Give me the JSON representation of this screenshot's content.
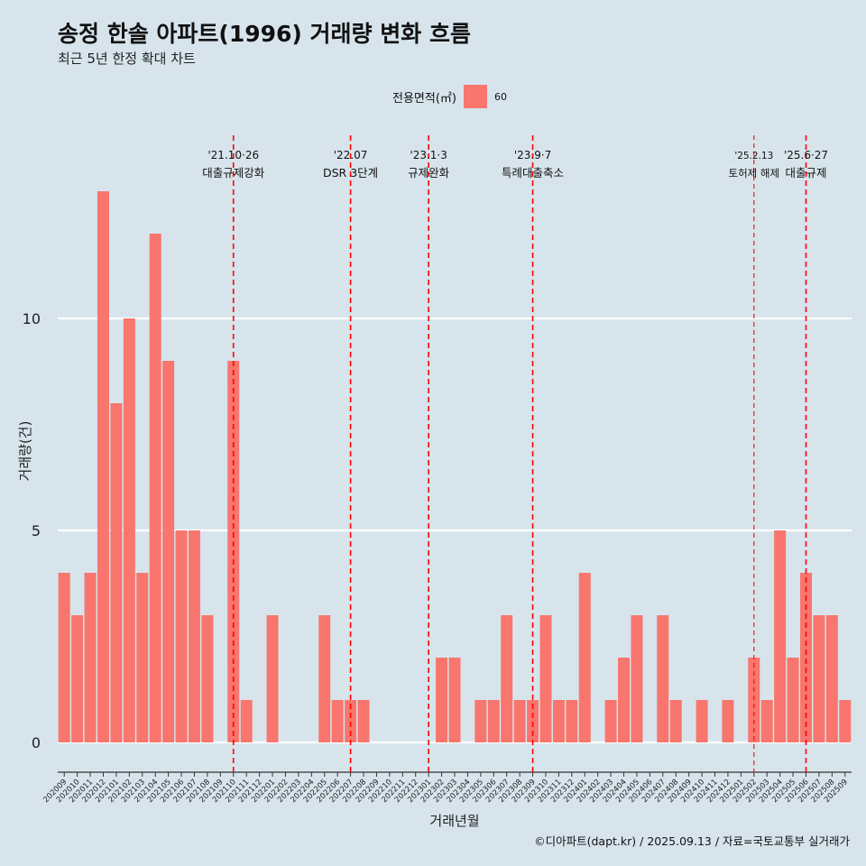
{
  "title": "송정 한솔 아파트(1996) 거래량 변화 흐름",
  "subtitle": "최근 5년 한정 확대 차트",
  "legend": {
    "title": "전용면적(㎡)",
    "item": "60"
  },
  "caption": "©디아파트(dapt.kr) / 2025.09.13 / 자료=국토교통부 실거래가",
  "colors": {
    "bar": "#f8766d",
    "background": "#d7e4ec",
    "grid": "#ffffff",
    "event_line": "#ff0000"
  },
  "chart_data": {
    "type": "bar",
    "xlabel": "거래년월",
    "ylabel": "거래량(건)",
    "ylim": [
      0,
      13.8
    ],
    "yticks": [
      0,
      5,
      10
    ],
    "grid": "horizontal major lines",
    "legend_position": "top",
    "categories": [
      "202009",
      "202010",
      "202011",
      "202012",
      "202101",
      "202102",
      "202103",
      "202104",
      "202105",
      "202106",
      "202107",
      "202108",
      "202109",
      "202110",
      "202111",
      "202112",
      "202201",
      "202202",
      "202203",
      "202204",
      "202205",
      "202206",
      "202207",
      "202208",
      "202209",
      "202210",
      "202211",
      "202212",
      "202301",
      "202302",
      "202303",
      "202304",
      "202305",
      "202306",
      "202307",
      "202308",
      "202309",
      "202310",
      "202311",
      "202312",
      "202401",
      "202402",
      "202403",
      "202404",
      "202405",
      "202406",
      "202407",
      "202408",
      "202409",
      "202410",
      "202411",
      "202412",
      "202501",
      "202502",
      "202503",
      "202504",
      "202505",
      "202506",
      "202507",
      "202508",
      "202509"
    ],
    "series": [
      {
        "name": "60",
        "values": [
          4,
          3,
          4,
          13,
          8,
          10,
          4,
          12,
          9,
          5,
          5,
          3,
          0,
          9,
          1,
          0,
          3,
          0,
          0,
          0,
          3,
          1,
          1,
          1,
          0,
          0,
          0,
          0,
          0,
          2,
          2,
          0,
          1,
          1,
          3,
          1,
          1,
          3,
          1,
          1,
          4,
          0,
          1,
          2,
          3,
          0,
          3,
          1,
          0,
          1,
          0,
          1,
          0,
          2,
          1,
          5,
          2,
          4,
          3,
          3,
          1
        ]
      }
    ],
    "annotations": [
      {
        "x": "202110",
        "date": "'21.10·26",
        "label": "대출규제강화",
        "style": "dashed"
      },
      {
        "x": "202207",
        "date": "'22.07",
        "label": "DSR 3단계",
        "style": "dashed"
      },
      {
        "x": "202301",
        "date": "'23.1·3",
        "label": "규제완화",
        "style": "dashed"
      },
      {
        "x": "202309",
        "date": "'23.9·7",
        "label": "특례대출축소",
        "style": "dashed"
      },
      {
        "x": "202502",
        "date": "'25.2.13",
        "label": "토허제 해제",
        "style": "thin-dashed"
      },
      {
        "x": "202506",
        "date": "'25.6·27",
        "label": "대출규제",
        "style": "dashed"
      }
    ]
  }
}
